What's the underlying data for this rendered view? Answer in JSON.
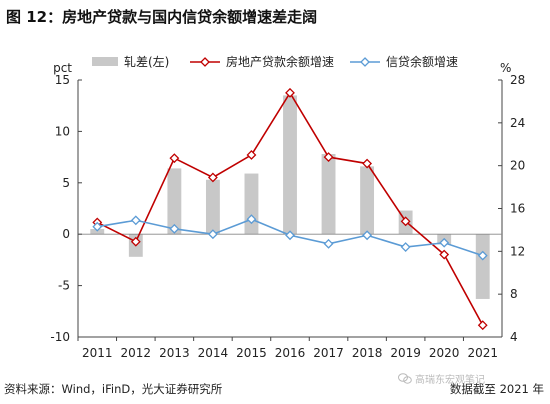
{
  "title": "图 12：房地产贷款与国内信贷余额增速差走阔",
  "footer": {
    "source": "资料来源：Wind，iFinD，光大证券研究所",
    "cutoff": "数据截至 2021 年",
    "watermark": "高瑞东宏观笔记"
  },
  "colors": {
    "bar": "#c8c8c8",
    "red": "#c00000",
    "blue": "#5b9bd5",
    "axis": "#444444"
  },
  "chart_data": {
    "type": "bar+line",
    "categories": [
      "2011",
      "2012",
      "2013",
      "2014",
      "2015",
      "2016",
      "2017",
      "2018",
      "2019",
      "2020",
      "2021"
    ],
    "left_axis": {
      "label": "pct",
      "range": [
        -10,
        15
      ],
      "ticks": [
        -10,
        -5,
        0,
        5,
        10,
        15
      ]
    },
    "right_axis": {
      "label": "%",
      "range": [
        4,
        28
      ],
      "ticks": [
        4,
        8,
        12,
        16,
        20,
        24,
        28
      ]
    },
    "legend_position": "top",
    "series": [
      {
        "name": "轧差(左)",
        "type": "bar",
        "axis": "left",
        "color": "#c8c8c8",
        "values": [
          0.5,
          -2.2,
          6.4,
          5.3,
          5.9,
          13.5,
          7.8,
          6.6,
          2.3,
          -1.0,
          -6.3
        ]
      },
      {
        "name": "房地产贷款余额增速",
        "type": "line",
        "axis": "right",
        "color": "#c00000",
        "marker": "diamond-open",
        "values": [
          14.7,
          12.9,
          20.7,
          18.9,
          21.0,
          26.8,
          20.8,
          20.2,
          14.8,
          11.7,
          5.1
        ]
      },
      {
        "name": "信贷余额增速",
        "type": "line",
        "axis": "right",
        "color": "#5b9bd5",
        "marker": "diamond-open",
        "values": [
          14.3,
          14.9,
          14.1,
          13.6,
          15.0,
          13.5,
          12.7,
          13.5,
          12.4,
          12.8,
          11.6
        ]
      }
    ]
  }
}
